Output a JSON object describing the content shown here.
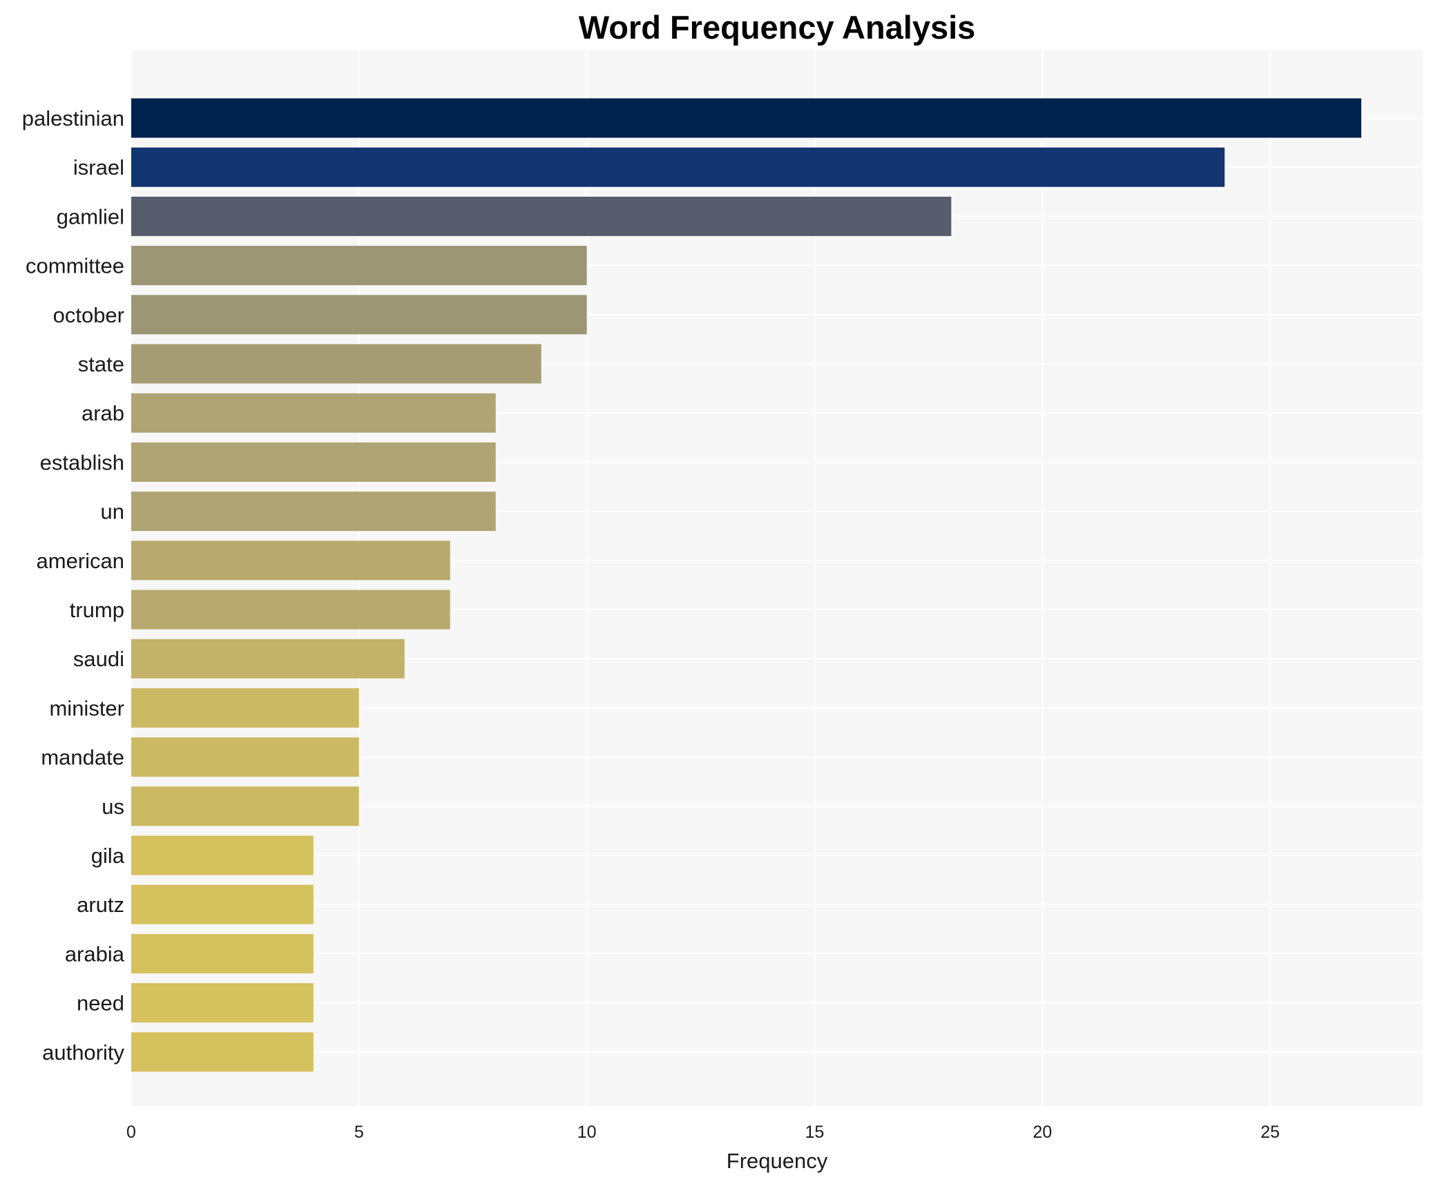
{
  "chart_data": {
    "type": "bar",
    "orientation": "horizontal",
    "title": "Word Frequency Analysis",
    "xlabel": "Frequency",
    "ylabel": "",
    "xlim": [
      0,
      28.35
    ],
    "xticks": [
      0,
      5,
      10,
      15,
      20,
      25
    ],
    "grid": true,
    "categories": [
      "palestinian",
      "israel",
      "gamliel",
      "committee",
      "october",
      "state",
      "arab",
      "establish",
      "un",
      "american",
      "trump",
      "saudi",
      "minister",
      "mandate",
      "us",
      "gila",
      "arutz",
      "arabia",
      "need",
      "authority"
    ],
    "values": [
      27,
      24,
      18,
      10,
      10,
      9,
      8,
      8,
      8,
      7,
      7,
      6,
      5,
      5,
      5,
      4,
      4,
      4,
      4,
      4
    ],
    "colors": [
      "#00224e",
      "#123570",
      "#575d6d",
      "#9d9675",
      "#9d9675",
      "#a69d75",
      "#afa473",
      "#afa473",
      "#afa473",
      "#b8aa6e",
      "#b8aa6e",
      "#c2b26a",
      "#cbba63",
      "#cbba63",
      "#cbba63",
      "#d5c15d",
      "#d5c15d",
      "#d5c15d",
      "#d5c15d",
      "#d5c15d"
    ],
    "plot_background": "#f7f7f7",
    "grid_color": "#ffffff"
  }
}
